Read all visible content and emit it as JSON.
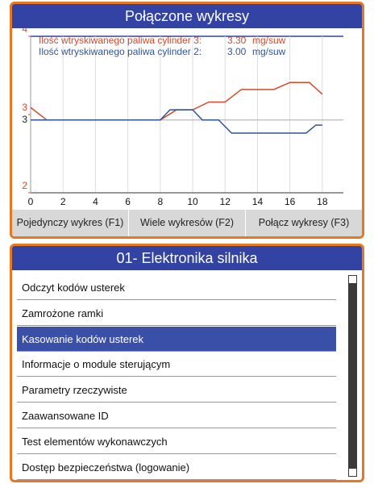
{
  "top_panel": {
    "title": "Połączone wykresy",
    "chart_data": {
      "type": "line",
      "xlim": [
        0,
        19.3
      ],
      "xticks": [
        0,
        2,
        4,
        6,
        8,
        10,
        12,
        14,
        16,
        18
      ],
      "ylim": [
        2,
        4
      ],
      "yticks": [
        2,
        3,
        4
      ],
      "y2lim": [
        2,
        4.15
      ],
      "y2ticks": [
        3
      ],
      "grid": true,
      "series": [
        {
          "name": "Ilość wtryskiwanego paliwa cylinder 3:",
          "reading": "3.30",
          "unit": "mg/suw",
          "color": "#d9472b",
          "x": [
            0,
            1,
            8,
            9,
            10,
            11,
            12,
            13,
            15,
            16,
            17.2,
            18
          ],
          "values": [
            3.09,
            2.93,
            2.93,
            3.06,
            3.06,
            3.16,
            3.16,
            3.32,
            3.32,
            3.41,
            3.41,
            3.26
          ]
        },
        {
          "name": "Ilość wtryskiwanego paliwa cylinder 2:",
          "reading": "3.00",
          "unit": "mg/suw",
          "color": "#2f5597",
          "axis": "y2",
          "x": [
            0,
            8,
            8.6,
            10,
            10.6,
            11.6,
            12.4,
            17,
            17.6,
            18
          ],
          "values": [
            3.0,
            3.0,
            3.14,
            3.14,
            3.0,
            3.0,
            2.82,
            2.82,
            2.93,
            2.93
          ]
        }
      ]
    },
    "buttons": [
      "Pojedynczy wykres (F1)",
      "Wiele wykresów (F2)",
      "Połącz wykresy (F3)"
    ]
  },
  "bottom_panel": {
    "title": "01- Elektronika silnika",
    "items": [
      "Odczyt kodów usterek",
      "Zamrożone ramki",
      "Kasowanie kodów usterek",
      "Informacje o module sterującym",
      "Parametry rzeczywiste",
      "Zaawansowane ID",
      "Test elementów wykonawczych",
      "Dostęp bezpieczeństwa (logowanie)"
    ],
    "selected": 2
  }
}
